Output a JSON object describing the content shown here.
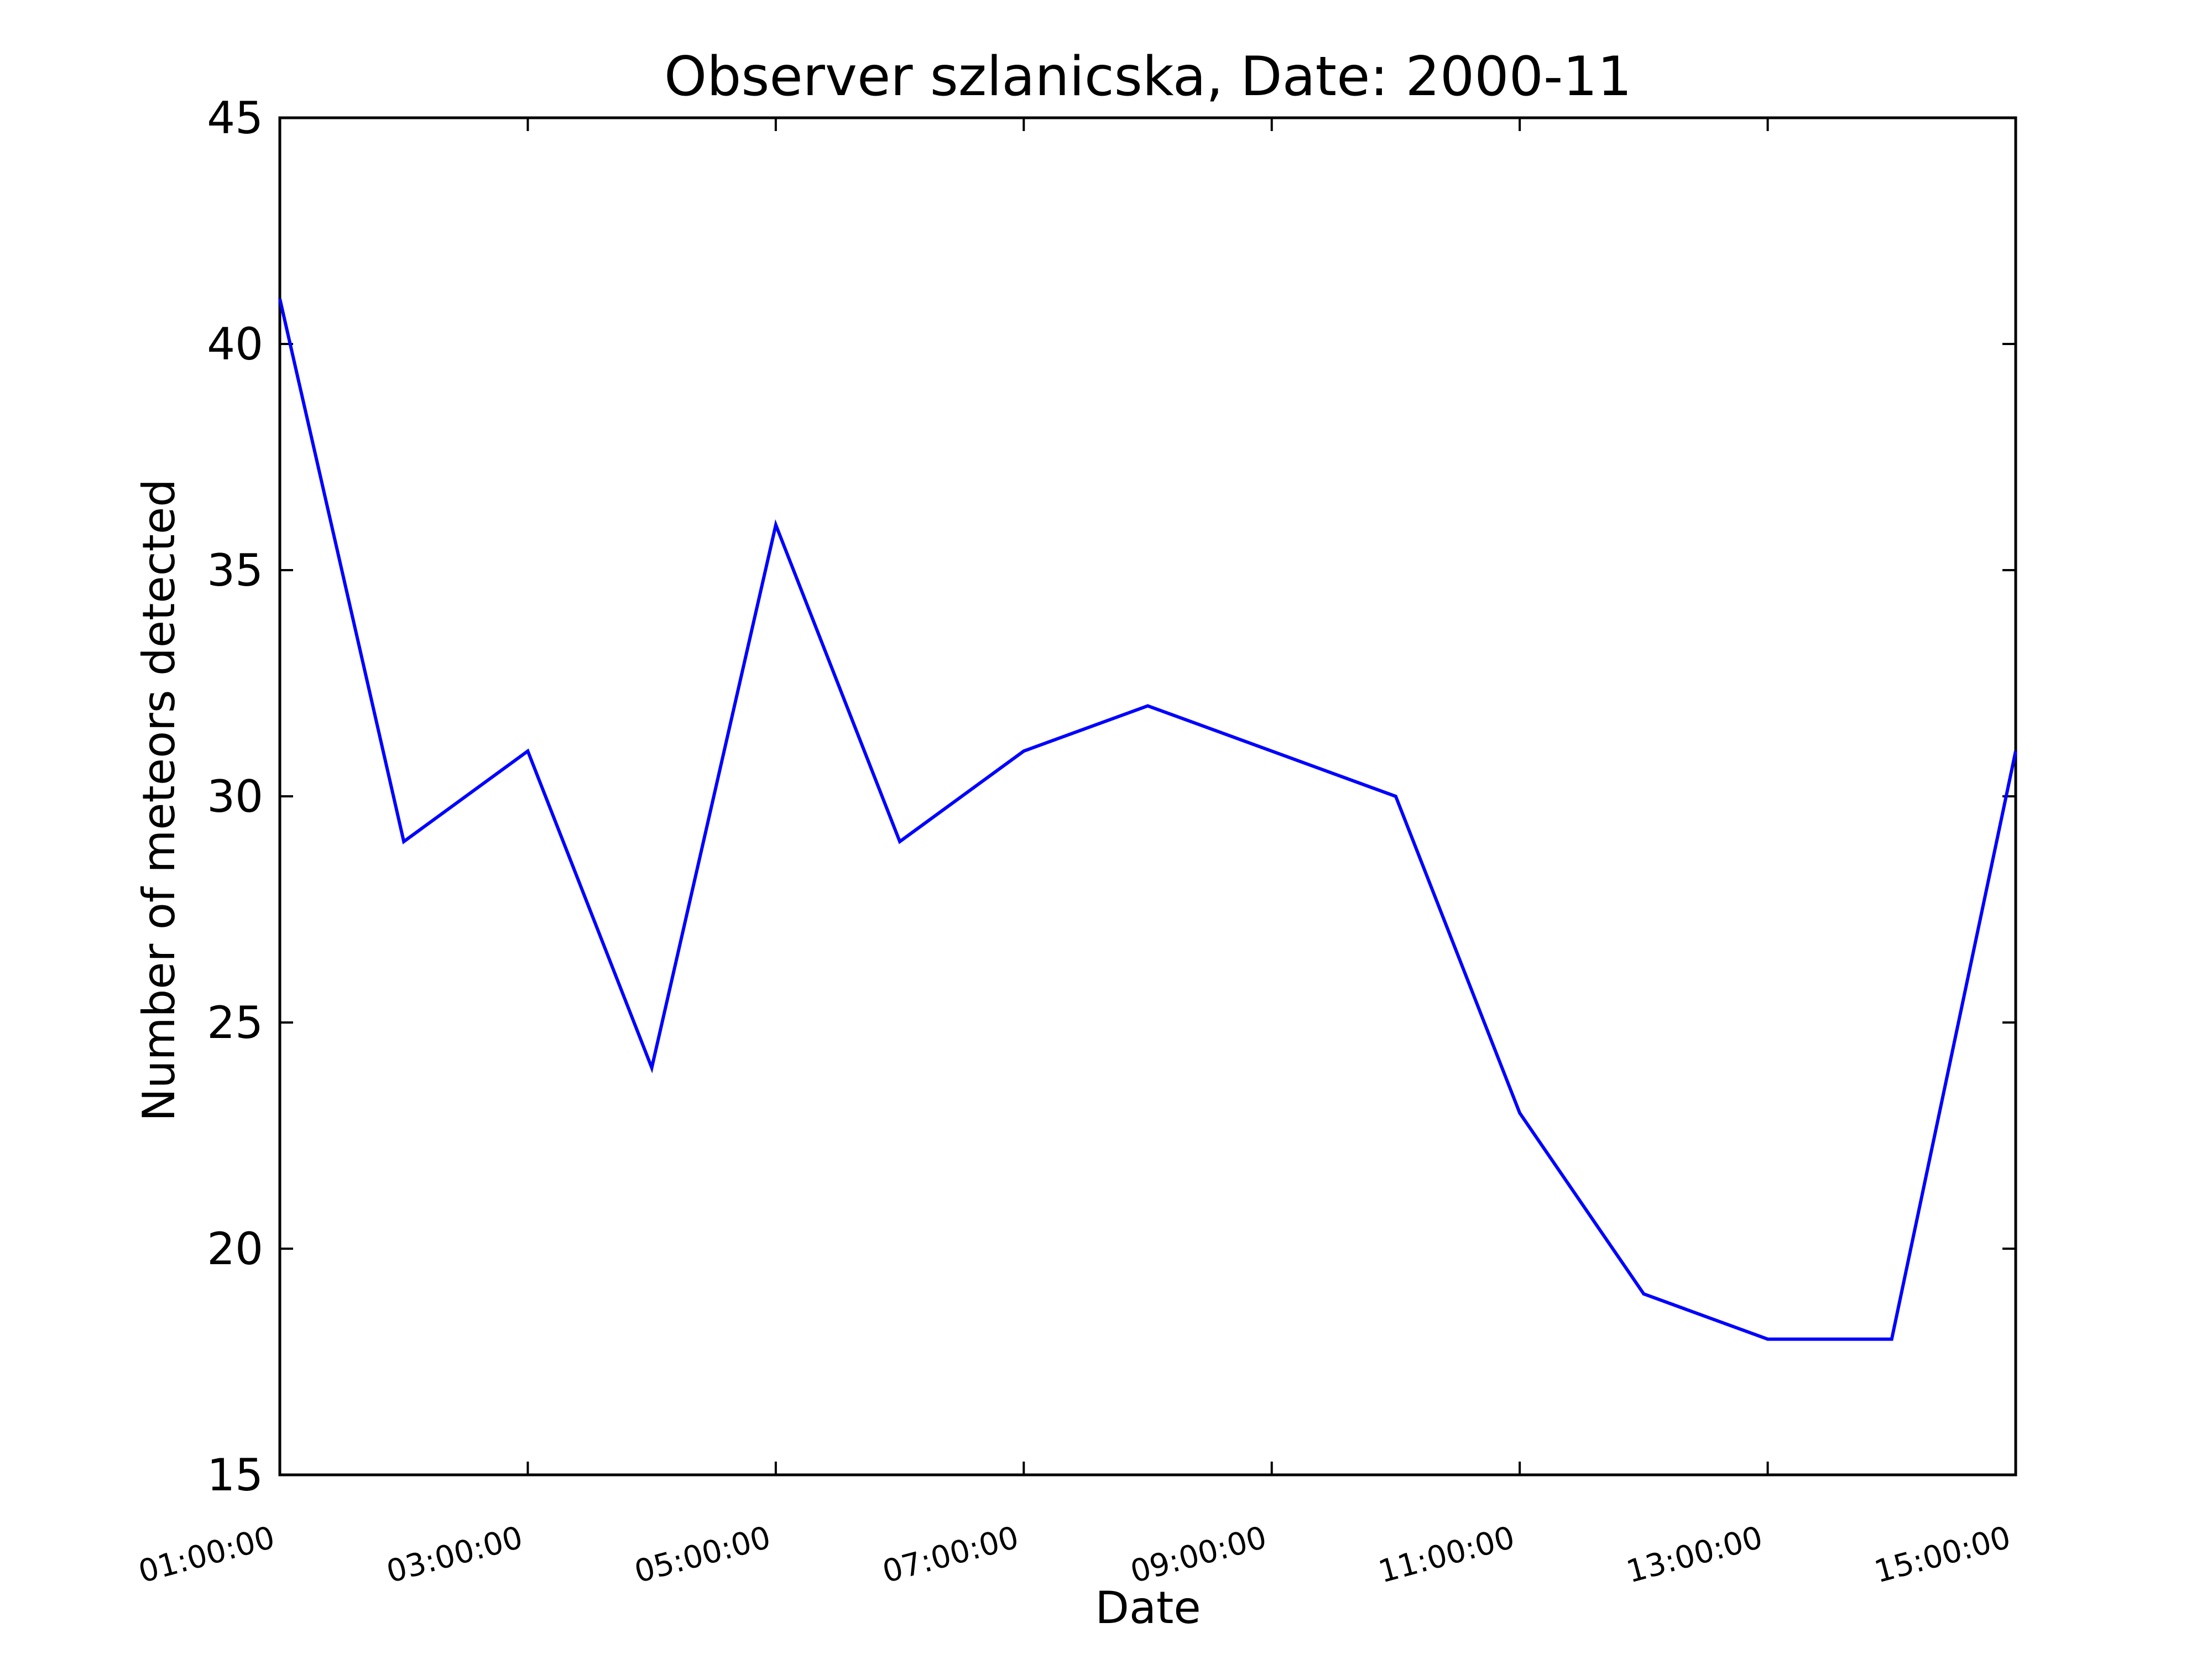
{
  "chart_data": {
    "type": "line",
    "title": "Observer szlanicska, Date: 2000-11",
    "xlabel": "Date",
    "ylabel": "Number of meteors detected",
    "x": [
      "01:00:00",
      "02:00:00",
      "03:00:00",
      "04:00:00",
      "05:00:00",
      "06:00:00",
      "07:00:00",
      "08:00:00",
      "09:00:00",
      "10:00:00",
      "11:00:00",
      "12:00:00",
      "13:00:00",
      "14:00:00",
      "15:00:00"
    ],
    "x_ticks": [
      "01:00:00",
      "03:00:00",
      "05:00:00",
      "07:00:00",
      "09:00:00",
      "11:00:00",
      "13:00:00",
      "15:00:00"
    ],
    "xlim": [
      "01:00:00",
      "15:00:00"
    ],
    "y_ticks": [
      15,
      20,
      25,
      30,
      35,
      40,
      45
    ],
    "ylim": [
      15,
      45
    ],
    "grid": false,
    "series": [
      {
        "values": [
          41,
          29,
          31,
          24,
          36,
          29,
          31,
          32,
          31,
          30,
          23,
          19,
          18,
          18,
          31
        ],
        "color": "#0000ff"
      }
    ]
  }
}
